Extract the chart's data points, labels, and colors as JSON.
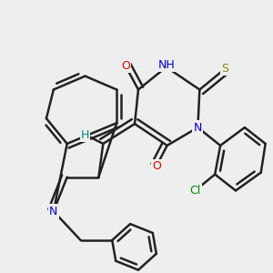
{
  "bg_color": "#eeeeee",
  "bond_color": "#222222",
  "bond_width": 1.8,
  "dbo": 0.012,
  "label_colors": {
    "O": "#dd0000",
    "N": "#0000cc",
    "S": "#888800",
    "Cl": "#008800",
    "H": "#008888",
    "C": "#222222"
  }
}
